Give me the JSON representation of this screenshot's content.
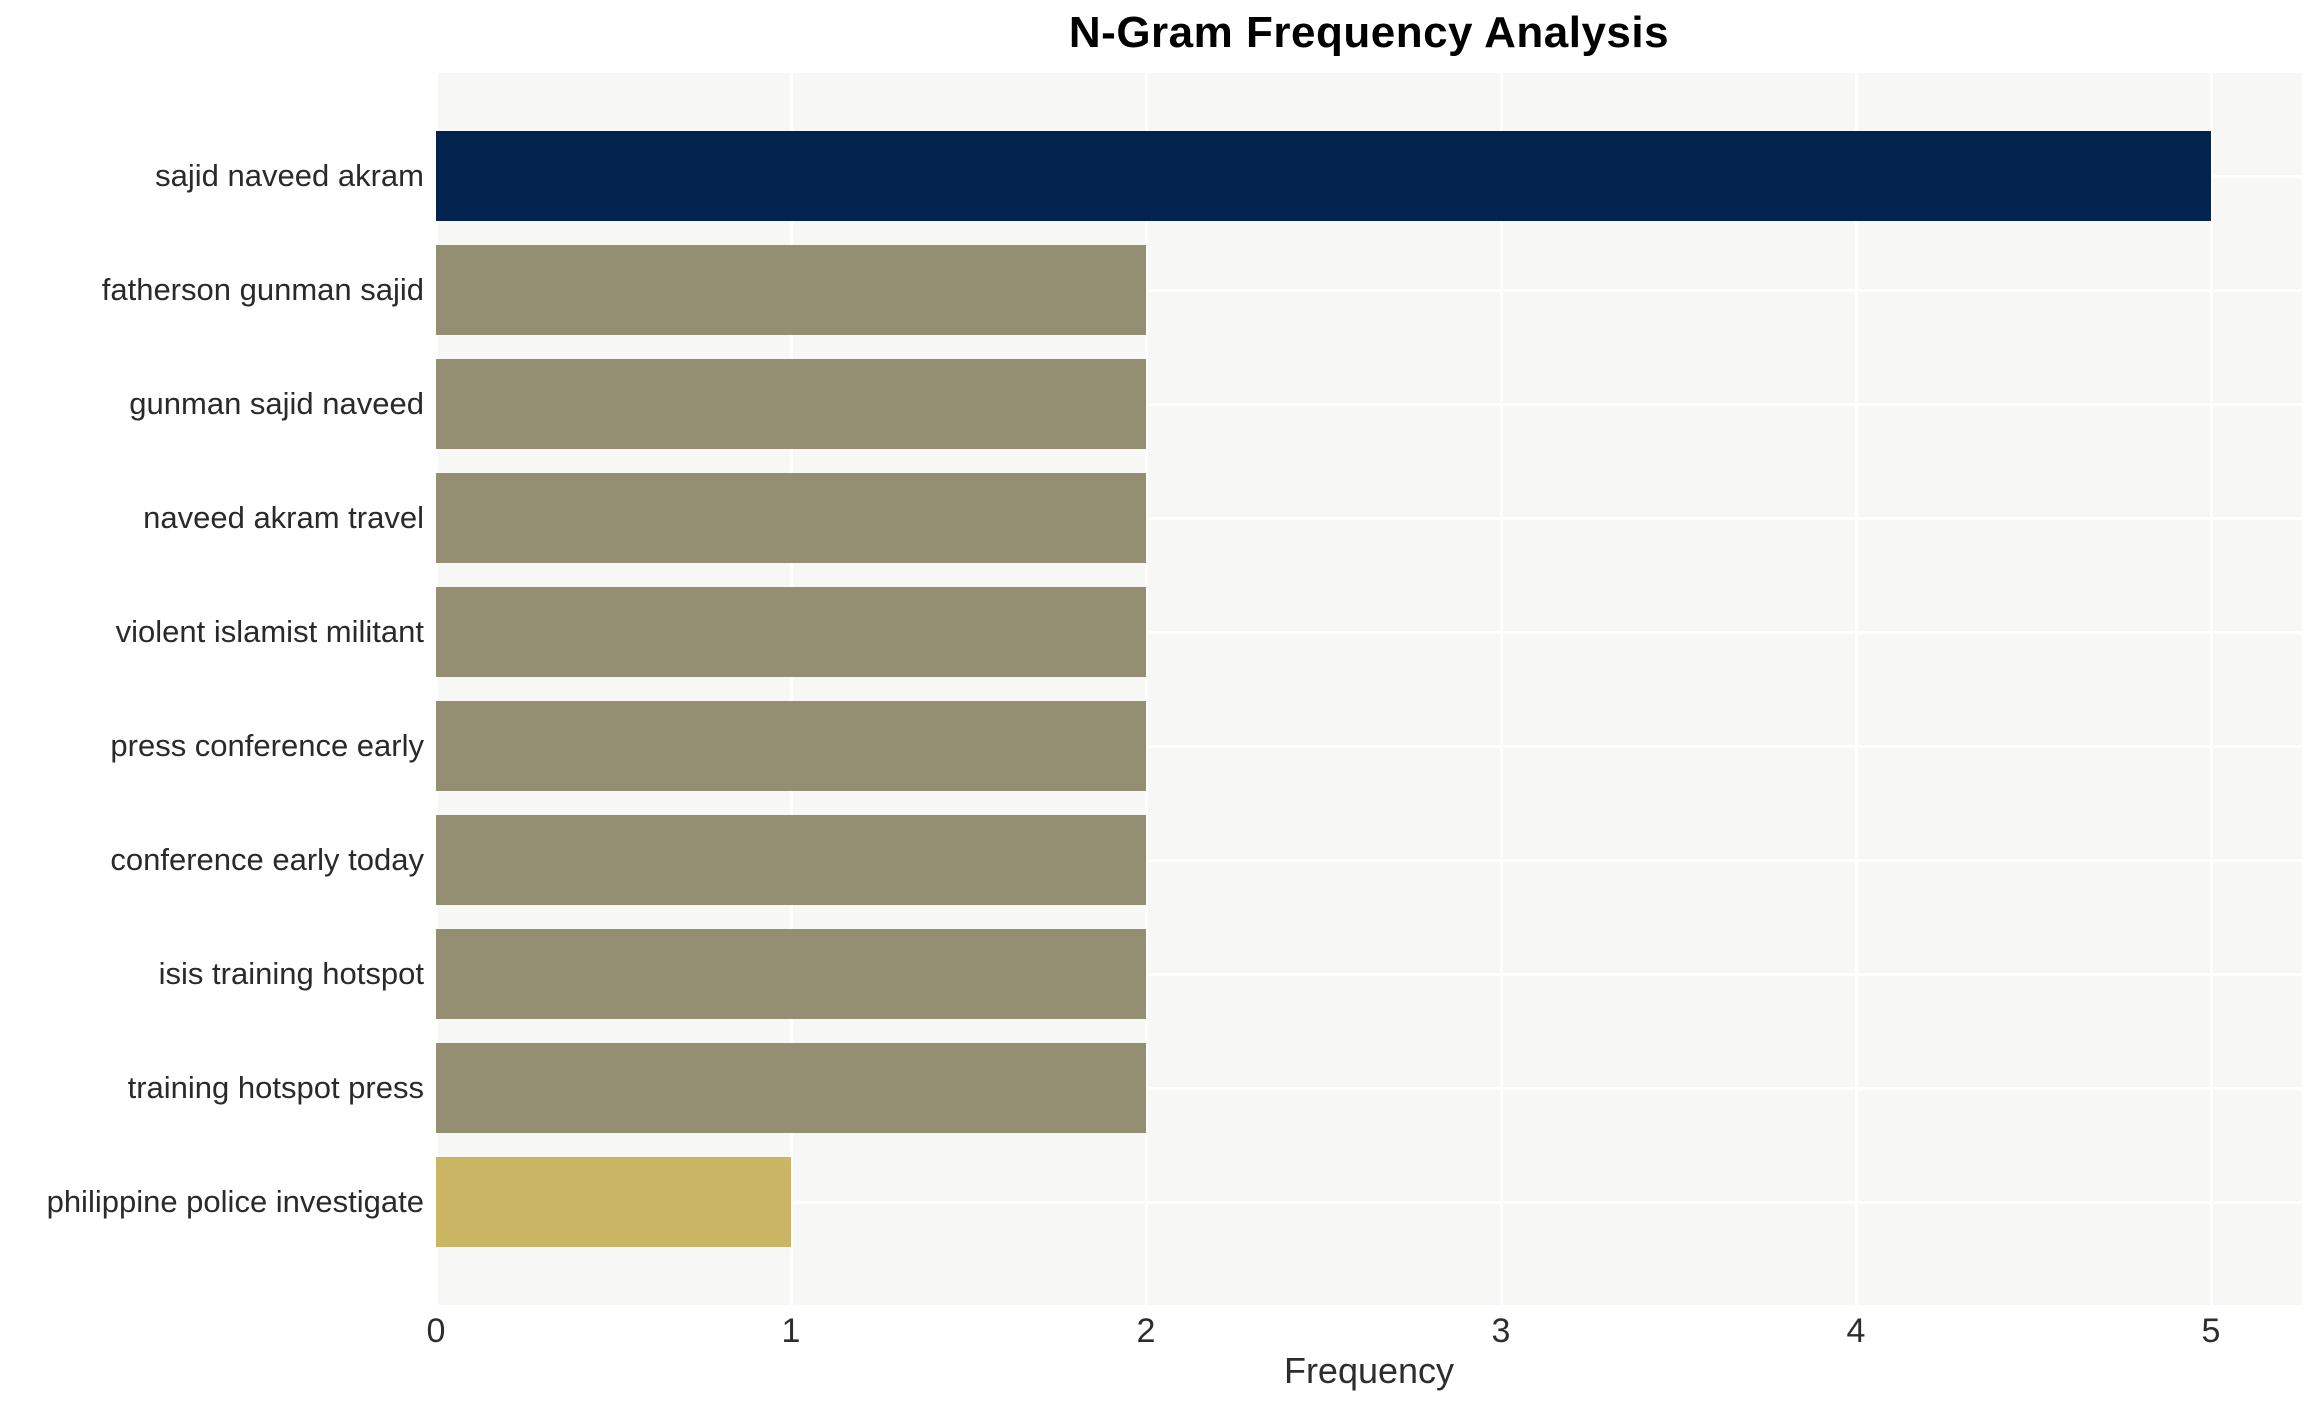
{
  "chart_data": {
    "type": "bar",
    "orientation": "horizontal",
    "title": "N-Gram Frequency Analysis",
    "xlabel": "Frequency",
    "ylabel": "",
    "categories": [
      "sajid naveed akram",
      "fatherson gunman sajid",
      "gunman sajid naveed",
      "naveed akram travel",
      "violent islamist militant",
      "press conference early",
      "conference early today",
      "isis training hotspot",
      "training hotspot press",
      "philippine police investigate"
    ],
    "values": [
      5,
      2,
      2,
      2,
      2,
      2,
      2,
      2,
      2,
      1
    ],
    "bar_colors": [
      "#02234d",
      "#948e73",
      "#948e73",
      "#948e73",
      "#948e73",
      "#948e73",
      "#948e73",
      "#948e73",
      "#948e73",
      "#c9b564"
    ],
    "x_ticks": [
      0,
      1,
      2,
      3,
      4,
      5
    ],
    "xlim": [
      0,
      5.26
    ],
    "grid": true,
    "legend": false,
    "colors": {
      "plot_background": "#f7f7f6",
      "grid_color": "#ffffff",
      "title_color": "#000000",
      "label_color": "#2a2a2a",
      "tick_color": "#2d2d2d"
    }
  }
}
